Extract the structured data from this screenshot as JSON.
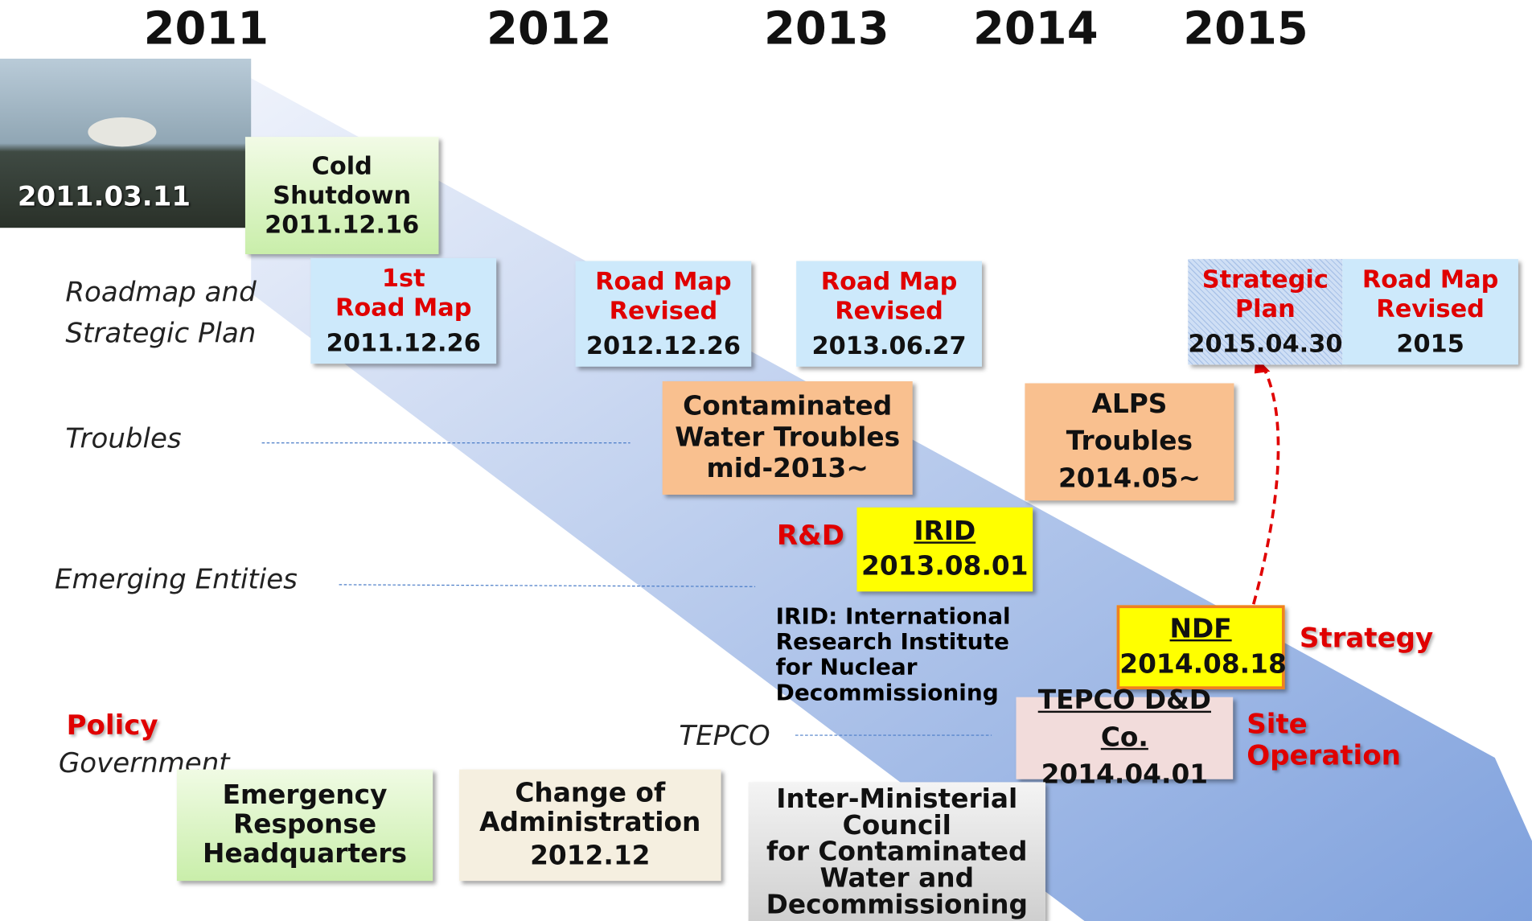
{
  "years": [
    "2011",
    "2012",
    "2013",
    "2014",
    "2015"
  ],
  "photo": {
    "date": "2011.03.11"
  },
  "rows": {
    "roadmap": "Roadmap and Strategic Plan",
    "troubles": "Troubles",
    "entities": "Emerging Entities",
    "tepco": "TEPCO",
    "policy": "Policy",
    "government": "Government"
  },
  "boxes": {
    "cold_shutdown": {
      "lines": [
        "Cold",
        "Shutdown"
      ],
      "date": "2011.12.16"
    },
    "road_map_1": {
      "lines": [
        "1st",
        "Road Map"
      ],
      "date": "2011.12.26"
    },
    "road_map_2012": {
      "lines": [
        "Road Map",
        "Revised"
      ],
      "date": "2012.12.26"
    },
    "road_map_2013": {
      "lines": [
        "Road Map",
        "Revised"
      ],
      "date": "2013.06.27"
    },
    "strategic_plan": {
      "lines": [
        "Strategic",
        "Plan"
      ],
      "date": "2015.04.30"
    },
    "road_map_2015": {
      "lines": [
        "Road Map",
        "Revised"
      ],
      "date": "2015"
    },
    "water_troubles": {
      "lines": [
        "Contaminated",
        "Water Troubles",
        "mid-2013~"
      ]
    },
    "alps_troubles": {
      "lines": [
        "ALPS Troubles",
        "2014.05~"
      ]
    },
    "irid": {
      "name": "IRID",
      "date": "2013.08.01"
    },
    "irid_note": {
      "lines": [
        "IRID: International",
        "Research Institute",
        "for Nuclear",
        "Decommissioning"
      ]
    },
    "ndf": {
      "name": "NDF",
      "date": "2014.08.18"
    },
    "tepco_dd": {
      "name": "TEPCO D&D Co.",
      "date": "2014.04.01"
    },
    "emergency": {
      "lines": [
        "Emergency",
        "Response",
        "Headquarters"
      ]
    },
    "administration": {
      "lines": [
        "Change of",
        "Administration",
        "2012.12"
      ]
    },
    "council": {
      "lines": [
        "Inter-Ministerial",
        "Council",
        "for Contaminated",
        "Water and",
        "Decommissioning"
      ]
    }
  },
  "tags": {
    "rnd": "R&D",
    "strategy": "Strategy",
    "site": [
      "Site",
      "Operation"
    ]
  }
}
